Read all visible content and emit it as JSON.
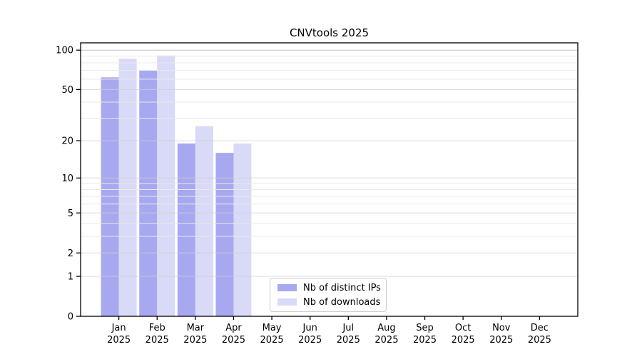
{
  "chart_data": {
    "type": "bar",
    "title": "CNVtools 2025",
    "y_scale": "log10(1+v)",
    "grid": true,
    "legend_position": "bottom-center-inside",
    "categories": [
      "Jan",
      "Feb",
      "Mar",
      "Apr",
      "May",
      "Jun",
      "Jul",
      "Aug",
      "Sep",
      "Oct",
      "Nov",
      "Dec"
    ],
    "category_year_line": "2025",
    "series": [
      {
        "name": "Nb of distinct IPs",
        "color": "#a8a8f0",
        "values": [
          62,
          70,
          19,
          16,
          0,
          0,
          0,
          0,
          0,
          0,
          0,
          0
        ]
      },
      {
        "name": "Nb of downloads",
        "color": "#d9d9f8",
        "values": [
          86,
          91,
          26,
          19,
          0,
          0,
          0,
          0,
          0,
          0,
          0,
          0
        ]
      }
    ],
    "y_ticks": [
      100,
      50,
      20,
      10,
      5,
      2,
      1,
      0
    ],
    "y_minor_gridlines": [
      3,
      4,
      6,
      7,
      8,
      9,
      30,
      40,
      60,
      70,
      80,
      90
    ],
    "ylim": [
      0,
      100
    ],
    "xlabel": "",
    "ylabel": ""
  },
  "colors": {
    "spine": "#000000",
    "gridline_major": "#cfcfcf",
    "gridline_top": "#ababab",
    "gridline_minor": "#e9e9e9",
    "tick_label": "#000000"
  }
}
